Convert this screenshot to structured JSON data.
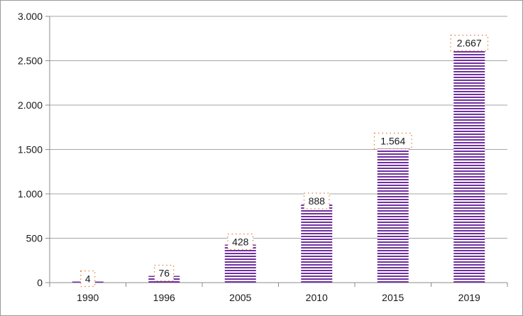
{
  "chart_data": {
    "type": "bar",
    "categories": [
      "1990",
      "1996",
      "2005",
      "2010",
      "2015",
      "2019"
    ],
    "values": [
      4,
      76,
      428,
      888,
      1564,
      2667
    ],
    "value_labels": [
      "4",
      "76",
      "428",
      "888",
      "1.564",
      "2.667"
    ],
    "title": "",
    "xlabel": "",
    "ylabel": "",
    "ylim": [
      0,
      3000
    ],
    "yticks": [
      0,
      500,
      1000,
      1500,
      2000,
      2500,
      3000
    ],
    "ytick_labels": [
      "0",
      "500",
      "1.000",
      "1.500",
      "2.000",
      "2.500",
      "3.000"
    ],
    "grid": true,
    "legend": "none",
    "bar_color": "#7030a0",
    "bar_stripe_color": "#ffffff",
    "label_border_color": "#e07b39"
  }
}
